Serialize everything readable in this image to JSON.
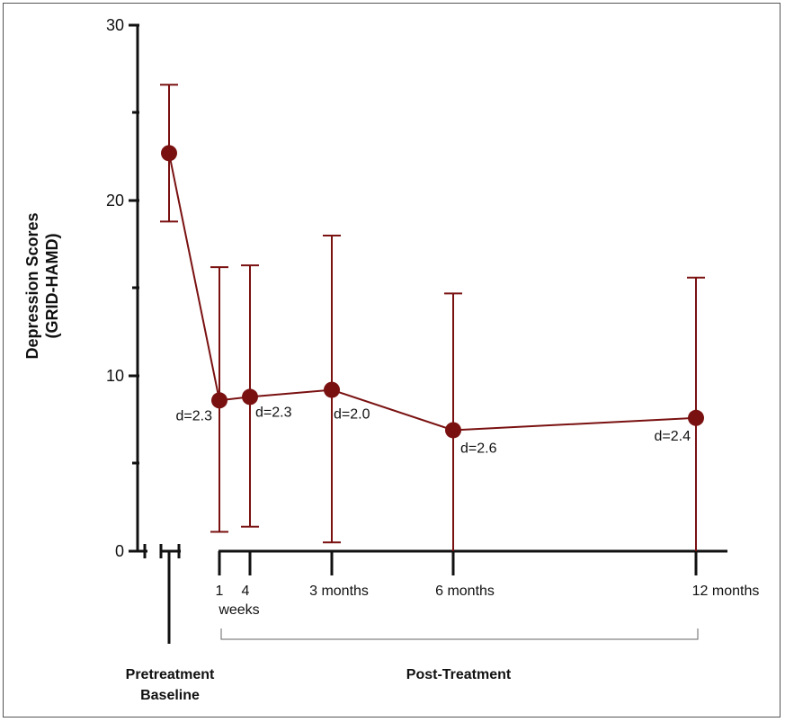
{
  "chart_data": {
    "type": "line",
    "ylabel_line1": "Depression Scores",
    "ylabel_line2": "(GRID-HAMD)",
    "ylim": [
      0,
      30
    ],
    "yticks": [
      "0",
      "10",
      "20",
      "30"
    ],
    "color": "#7a1111",
    "points": [
      {
        "x_label": "Pretreatment Baseline",
        "y": 22.7,
        "err_low": 18.8,
        "err_high": 26.6,
        "d": ""
      },
      {
        "x_label": "1 weeks",
        "y": 8.6,
        "err_low": 1.1,
        "err_high": 16.2,
        "d": "d=2.3"
      },
      {
        "x_label": "4 weeks",
        "y": 8.8,
        "err_low": 1.4,
        "err_high": 16.3,
        "d": "d=2.3"
      },
      {
        "x_label": "3 months",
        "y": 9.2,
        "err_low": 0.5,
        "err_high": 18.0,
        "d": "d=2.0"
      },
      {
        "x_label": "6 months",
        "y": 6.9,
        "err_low": 0.0,
        "err_high": 14.7,
        "d": "d=2.6"
      },
      {
        "x_label": "12 months",
        "y": 7.6,
        "err_low": 0.0,
        "err_high": 15.6,
        "d": "d=2.4"
      }
    ],
    "xtick_labels": {
      "w1": "1",
      "w4": "4",
      "weeks": "weeks",
      "m3": "3 months",
      "m6": "6 months",
      "m12": "12 months"
    },
    "groups": {
      "pre_line1": "Pretreatment",
      "pre_line2": "Baseline",
      "post": "Post-Treatment"
    }
  }
}
